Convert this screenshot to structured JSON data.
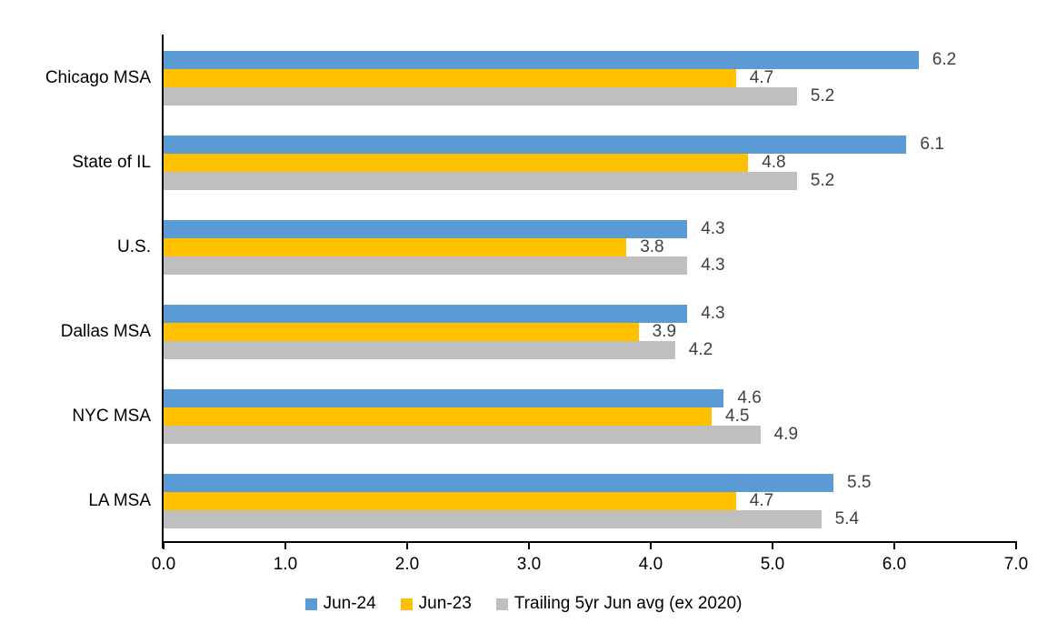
{
  "chart_data": {
    "type": "bar",
    "orientation": "horizontal",
    "title": "",
    "xlabel": "",
    "ylabel": "",
    "categories": [
      "Chicago MSA",
      "State of IL",
      "U.S.",
      "Dallas MSA",
      "NYC MSA",
      "LA MSA"
    ],
    "series": [
      {
        "name": "Jun-24",
        "color": "#5B9BD5",
        "values": [
          6.2,
          6.1,
          4.3,
          4.3,
          4.6,
          5.5
        ]
      },
      {
        "name": "Jun-23",
        "color": "#FFC000",
        "values": [
          4.7,
          4.8,
          3.8,
          3.9,
          4.5,
          4.7
        ]
      },
      {
        "name": "Trailing 5yr Jun avg (ex 2020)",
        "color": "#BFBFBF",
        "values": [
          5.2,
          5.2,
          4.3,
          4.2,
          4.9,
          5.4
        ]
      }
    ],
    "xlim": [
      0.0,
      7.0
    ],
    "x_ticks": [
      "0.0",
      "1.0",
      "2.0",
      "3.0",
      "4.0",
      "5.0",
      "6.0",
      "7.0"
    ],
    "tick_step": 1.0,
    "data_labels": true,
    "data_label_decimals": 1,
    "grid": false,
    "legend_position": "bottom",
    "axis_color": "#000000",
    "data_label_color": "#404040",
    "text_color": "#000000"
  }
}
